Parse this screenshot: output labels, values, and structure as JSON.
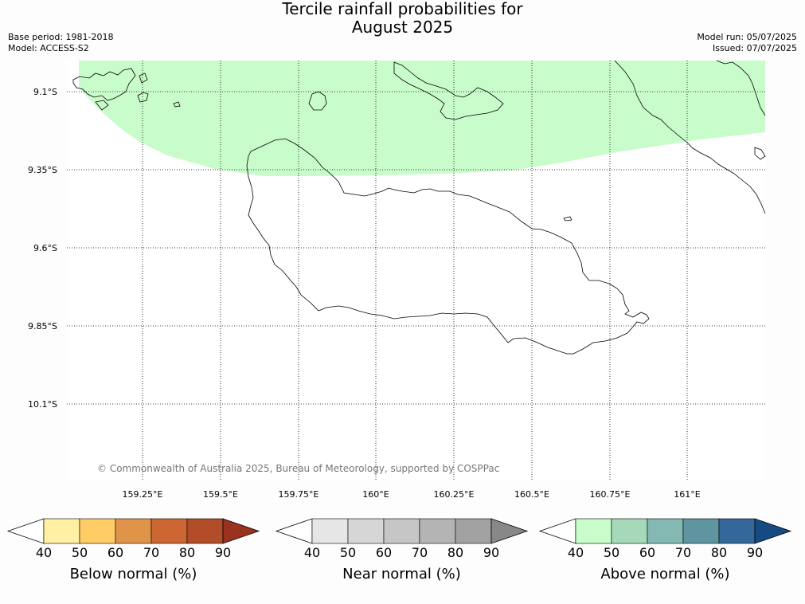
{
  "title_line1": "Tercile rainfall probabilities for",
  "title_line2": "August 2025",
  "base_period": "Base period: 1981-2018",
  "model": "Model: ACCESS-S2",
  "model_run": "Model run: 05/07/2025",
  "issued": "Issued: 07/07/2025",
  "copyright": "© Commonwealth of Australia 2025, Bureau of Meteorology, supported by COSPPac",
  "lat_labels": [
    "9.1°S",
    "9.35°S",
    "9.6°S",
    "9.85°S",
    "10.1°S"
  ],
  "lon_labels": [
    "159.25°E",
    "159.5°E",
    "159.75°E",
    "160°E",
    "160.25°E",
    "160.5°E",
    "160.75°E",
    "161°E"
  ],
  "colorbars": [
    {
      "label": "Below normal (%)",
      "ticks": [
        "40",
        "50",
        "60",
        "70",
        "80",
        "90"
      ],
      "colors": [
        "#ffffff",
        "#fff0a3",
        "#ffcc66",
        "#e0944a",
        "#cc6633",
        "#b34d29",
        "#99331f"
      ]
    },
    {
      "label": "Near normal (%)",
      "ticks": [
        "40",
        "50",
        "60",
        "70",
        "80",
        "90"
      ],
      "colors": [
        "#ffffff",
        "#e6e6e6",
        "#d6d6d6",
        "#c6c6c6",
        "#b4b4b4",
        "#a2a2a2",
        "#888888"
      ]
    },
    {
      "label": "Above normal (%)",
      "ticks": [
        "40",
        "50",
        "60",
        "70",
        "80",
        "90"
      ],
      "colors": [
        "#ffffff",
        "#c9fccb",
        "#a5d9b9",
        "#84b8b2",
        "#5f95a0",
        "#34689a",
        "#154b82"
      ]
    }
  ],
  "shaded_region": {
    "category": "Above normal",
    "range": "40-50",
    "color": "#c9fccb"
  }
}
